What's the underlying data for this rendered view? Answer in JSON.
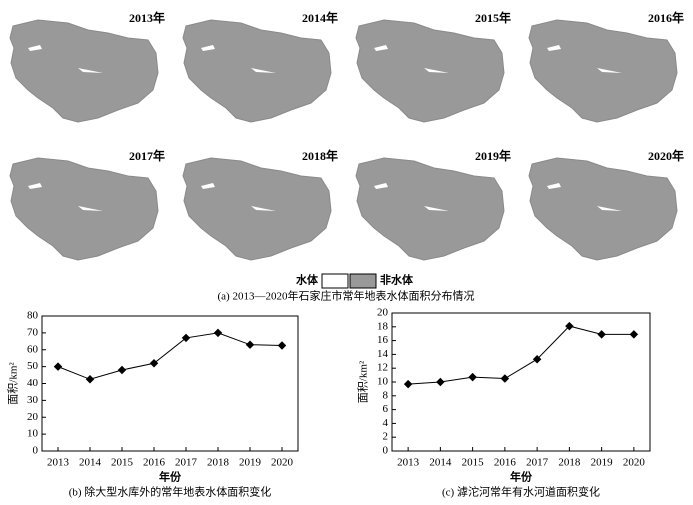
{
  "maps": {
    "years": [
      "2013年",
      "2014年",
      "2015年",
      "2016年",
      "2017年",
      "2018年",
      "2019年",
      "2020年"
    ],
    "legend": [
      "水体",
      "非水体"
    ],
    "caption": "(a) 2013—2020年石家庄市常年地表水体面积分布情况"
  },
  "chart_data": [
    {
      "type": "line",
      "caption": "(b) 除大型水库外的常年地表水体面积变化",
      "xlabel": "年份",
      "ylabel": "面积/km²",
      "categories": [
        "2013",
        "2014",
        "2015",
        "2016",
        "2017",
        "2018",
        "2019",
        "2020"
      ],
      "values": [
        50,
        42.5,
        48,
        52,
        67,
        70,
        63,
        62.5
      ],
      "color": "#000000",
      "ylim": [
        0,
        80
      ],
      "yticks": [
        0,
        10,
        20,
        30,
        40,
        50,
        60,
        70,
        80
      ]
    },
    {
      "type": "line",
      "caption": "(c) 滹沱河常年有水河道面积变化",
      "xlabel": "年份",
      "ylabel": "面积/km²",
      "categories": [
        "2013",
        "2014",
        "2015",
        "2016",
        "2017",
        "2018",
        "2019",
        "2020"
      ],
      "values": [
        9.7,
        10,
        10.7,
        10.5,
        13.3,
        18.1,
        16.9,
        16.9
      ],
      "color": "#000000",
      "ylim": [
        0,
        20
      ],
      "yticks": [
        0,
        2,
        4,
        6,
        8,
        10,
        12,
        14,
        16,
        18,
        20
      ]
    }
  ]
}
